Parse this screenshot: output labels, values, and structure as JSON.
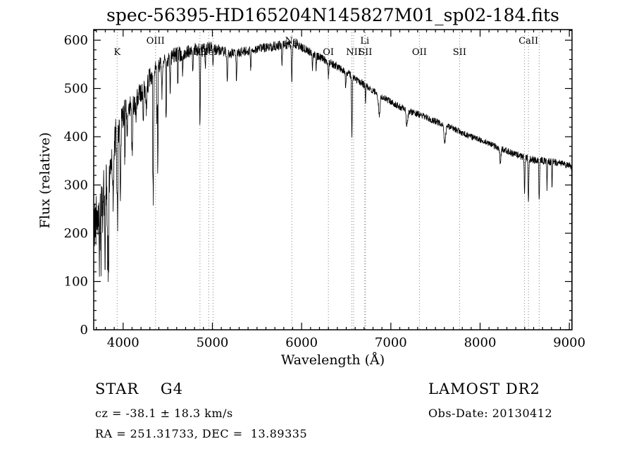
{
  "title": "spec-56395-HD165204N145827M01_sp02-184.fits",
  "chart_data": {
    "type": "line",
    "title": "spec-56395-HD165204N145827M01_sp02-184.fits",
    "xlabel": "Wavelength (Å)",
    "ylabel": "Flux (relative)",
    "xlim": [
      3670,
      9030
    ],
    "ylim": [
      0,
      622
    ],
    "x_ticks": [
      4000,
      5000,
      6000,
      7000,
      8000,
      9000
    ],
    "y_ticks": [
      0,
      100,
      200,
      300,
      400,
      500,
      600
    ],
    "grid": "dotted vertical lines at labeled spectral features only",
    "line_color": "#000000",
    "feature_line_color": "#808080",
    "continuum": [
      [
        3670,
        200
      ],
      [
        3700,
        240
      ],
      [
        3750,
        270
      ],
      [
        3800,
        300
      ],
      [
        3850,
        330
      ],
      [
        3900,
        390
      ],
      [
        3950,
        420
      ],
      [
        4000,
        445
      ],
      [
        4100,
        465
      ],
      [
        4200,
        490
      ],
      [
        4300,
        520
      ],
      [
        4400,
        545
      ],
      [
        4500,
        560
      ],
      [
        4600,
        570
      ],
      [
        4700,
        575
      ],
      [
        4800,
        580
      ],
      [
        4900,
        582
      ],
      [
        5000,
        585
      ],
      [
        5100,
        578
      ],
      [
        5200,
        572
      ],
      [
        5300,
        575
      ],
      [
        5400,
        578
      ],
      [
        5500,
        582
      ],
      [
        5600,
        585
      ],
      [
        5700,
        588
      ],
      [
        5800,
        590
      ],
      [
        5900,
        592
      ],
      [
        5950,
        590
      ],
      [
        6000,
        585
      ],
      [
        6100,
        575
      ],
      [
        6200,
        565
      ],
      [
        6300,
        555
      ],
      [
        6400,
        545
      ],
      [
        6500,
        535
      ],
      [
        6600,
        520
      ],
      [
        6700,
        508
      ],
      [
        6800,
        495
      ],
      [
        6900,
        483
      ],
      [
        7000,
        472
      ],
      [
        7100,
        462
      ],
      [
        7200,
        453
      ],
      [
        7300,
        447
      ],
      [
        7400,
        440
      ],
      [
        7500,
        432
      ],
      [
        7600,
        424
      ],
      [
        7700,
        417
      ],
      [
        7800,
        408
      ],
      [
        7900,
        400
      ],
      [
        8000,
        394
      ],
      [
        8100,
        386
      ],
      [
        8200,
        378
      ],
      [
        8300,
        370
      ],
      [
        8400,
        363
      ],
      [
        8500,
        358
      ],
      [
        8600,
        352
      ],
      [
        8700,
        350
      ],
      [
        8800,
        348
      ],
      [
        8900,
        345
      ],
      [
        9000,
        340
      ],
      [
        9030,
        335
      ]
    ],
    "noise": [
      [
        3670,
        60
      ],
      [
        3800,
        55
      ],
      [
        3900,
        40
      ],
      [
        4000,
        30
      ],
      [
        4200,
        25
      ],
      [
        4500,
        18
      ],
      [
        4800,
        14
      ],
      [
        5200,
        10
      ],
      [
        5800,
        10
      ],
      [
        6000,
        9
      ],
      [
        6500,
        8
      ],
      [
        7000,
        7
      ],
      [
        7500,
        7
      ],
      [
        8000,
        6
      ],
      [
        8500,
        8
      ],
      [
        9000,
        7
      ]
    ],
    "absorption_lines": [
      [
        3736,
        110,
        5
      ],
      [
        3770,
        90,
        4
      ],
      [
        3798,
        140,
        5
      ],
      [
        3835,
        200,
        5
      ],
      [
        3889,
        130,
        5
      ],
      [
        3933,
        150,
        5
      ],
      [
        3969,
        140,
        5
      ],
      [
        4045,
        60,
        4
      ],
      [
        4101,
        95,
        5
      ],
      [
        4144,
        55,
        4
      ],
      [
        4226,
        75,
        4
      ],
      [
        4260,
        55,
        4
      ],
      [
        4340,
        110,
        5
      ],
      [
        4383,
        85,
        4
      ],
      [
        4435,
        55,
        4
      ],
      [
        4528,
        60,
        4
      ],
      [
        4668,
        50,
        4
      ],
      [
        4780,
        45,
        4
      ],
      [
        4861,
        160,
        4
      ],
      [
        4920,
        40,
        4
      ],
      [
        5007,
        35,
        4
      ],
      [
        5167,
        65,
        5
      ],
      [
        5270,
        60,
        4
      ],
      [
        5430,
        40,
        4
      ],
      [
        5780,
        40,
        4
      ],
      [
        5890,
        75,
        5
      ],
      [
        6122,
        30,
        4
      ],
      [
        6162,
        25,
        4
      ],
      [
        6300,
        30,
        4
      ],
      [
        6494,
        35,
        4
      ],
      [
        6563,
        125,
        4
      ],
      [
        6717,
        30,
        4
      ],
      [
        6870,
        40,
        9
      ],
      [
        7180,
        30,
        9
      ],
      [
        7605,
        35,
        10
      ],
      [
        8227,
        30,
        6
      ],
      [
        8498,
        75,
        4
      ],
      [
        8542,
        95,
        4
      ],
      [
        8662,
        85,
        4
      ],
      [
        8750,
        55,
        3
      ],
      [
        8806,
        50,
        3
      ]
    ],
    "features": [
      {
        "wavelength": 3933,
        "label": "K",
        "row": 2
      },
      {
        "wavelength": 4363,
        "label": "OIII",
        "row": 1
      },
      {
        "wavelength": 4861,
        "label": "Hβ",
        "row": 2
      },
      {
        "wavelength": 4959,
        "label": "HeI",
        "row": 2
      },
      {
        "wavelength": 5007,
        "label": "",
        "row": 2
      },
      {
        "wavelength": 5890,
        "label": "Na",
        "row": 1
      },
      {
        "wavelength": 6300,
        "label": "OI",
        "row": 2
      },
      {
        "wavelength": 6563,
        "label": "",
        "row": 2
      },
      {
        "wavelength": 6583,
        "label": "NII",
        "row": 2
      },
      {
        "wavelength": 6707,
        "label": "Li",
        "row": 1
      },
      {
        "wavelength": 6716,
        "label": "SII",
        "row": 2
      },
      {
        "wavelength": 7320,
        "label": "OII",
        "row": 2
      },
      {
        "wavelength": 7770,
        "label": "SII",
        "row": 2
      },
      {
        "wavelength": 8498,
        "label": "",
        "row": 1
      },
      {
        "wavelength": 8542,
        "label": "CaII",
        "row": 1
      },
      {
        "wavelength": 8662,
        "label": "",
        "row": 1
      }
    ],
    "edge_drop_wavelength": 9028
  },
  "footer": {
    "class_label": "STAR    G4",
    "survey": "LAMOST DR2",
    "cz": "cz = -38.1 ± 18.3 km/s",
    "obs_date": "Obs-Date: 20130412",
    "coords": "RA = 251.31733, DEC =  13.89335"
  }
}
